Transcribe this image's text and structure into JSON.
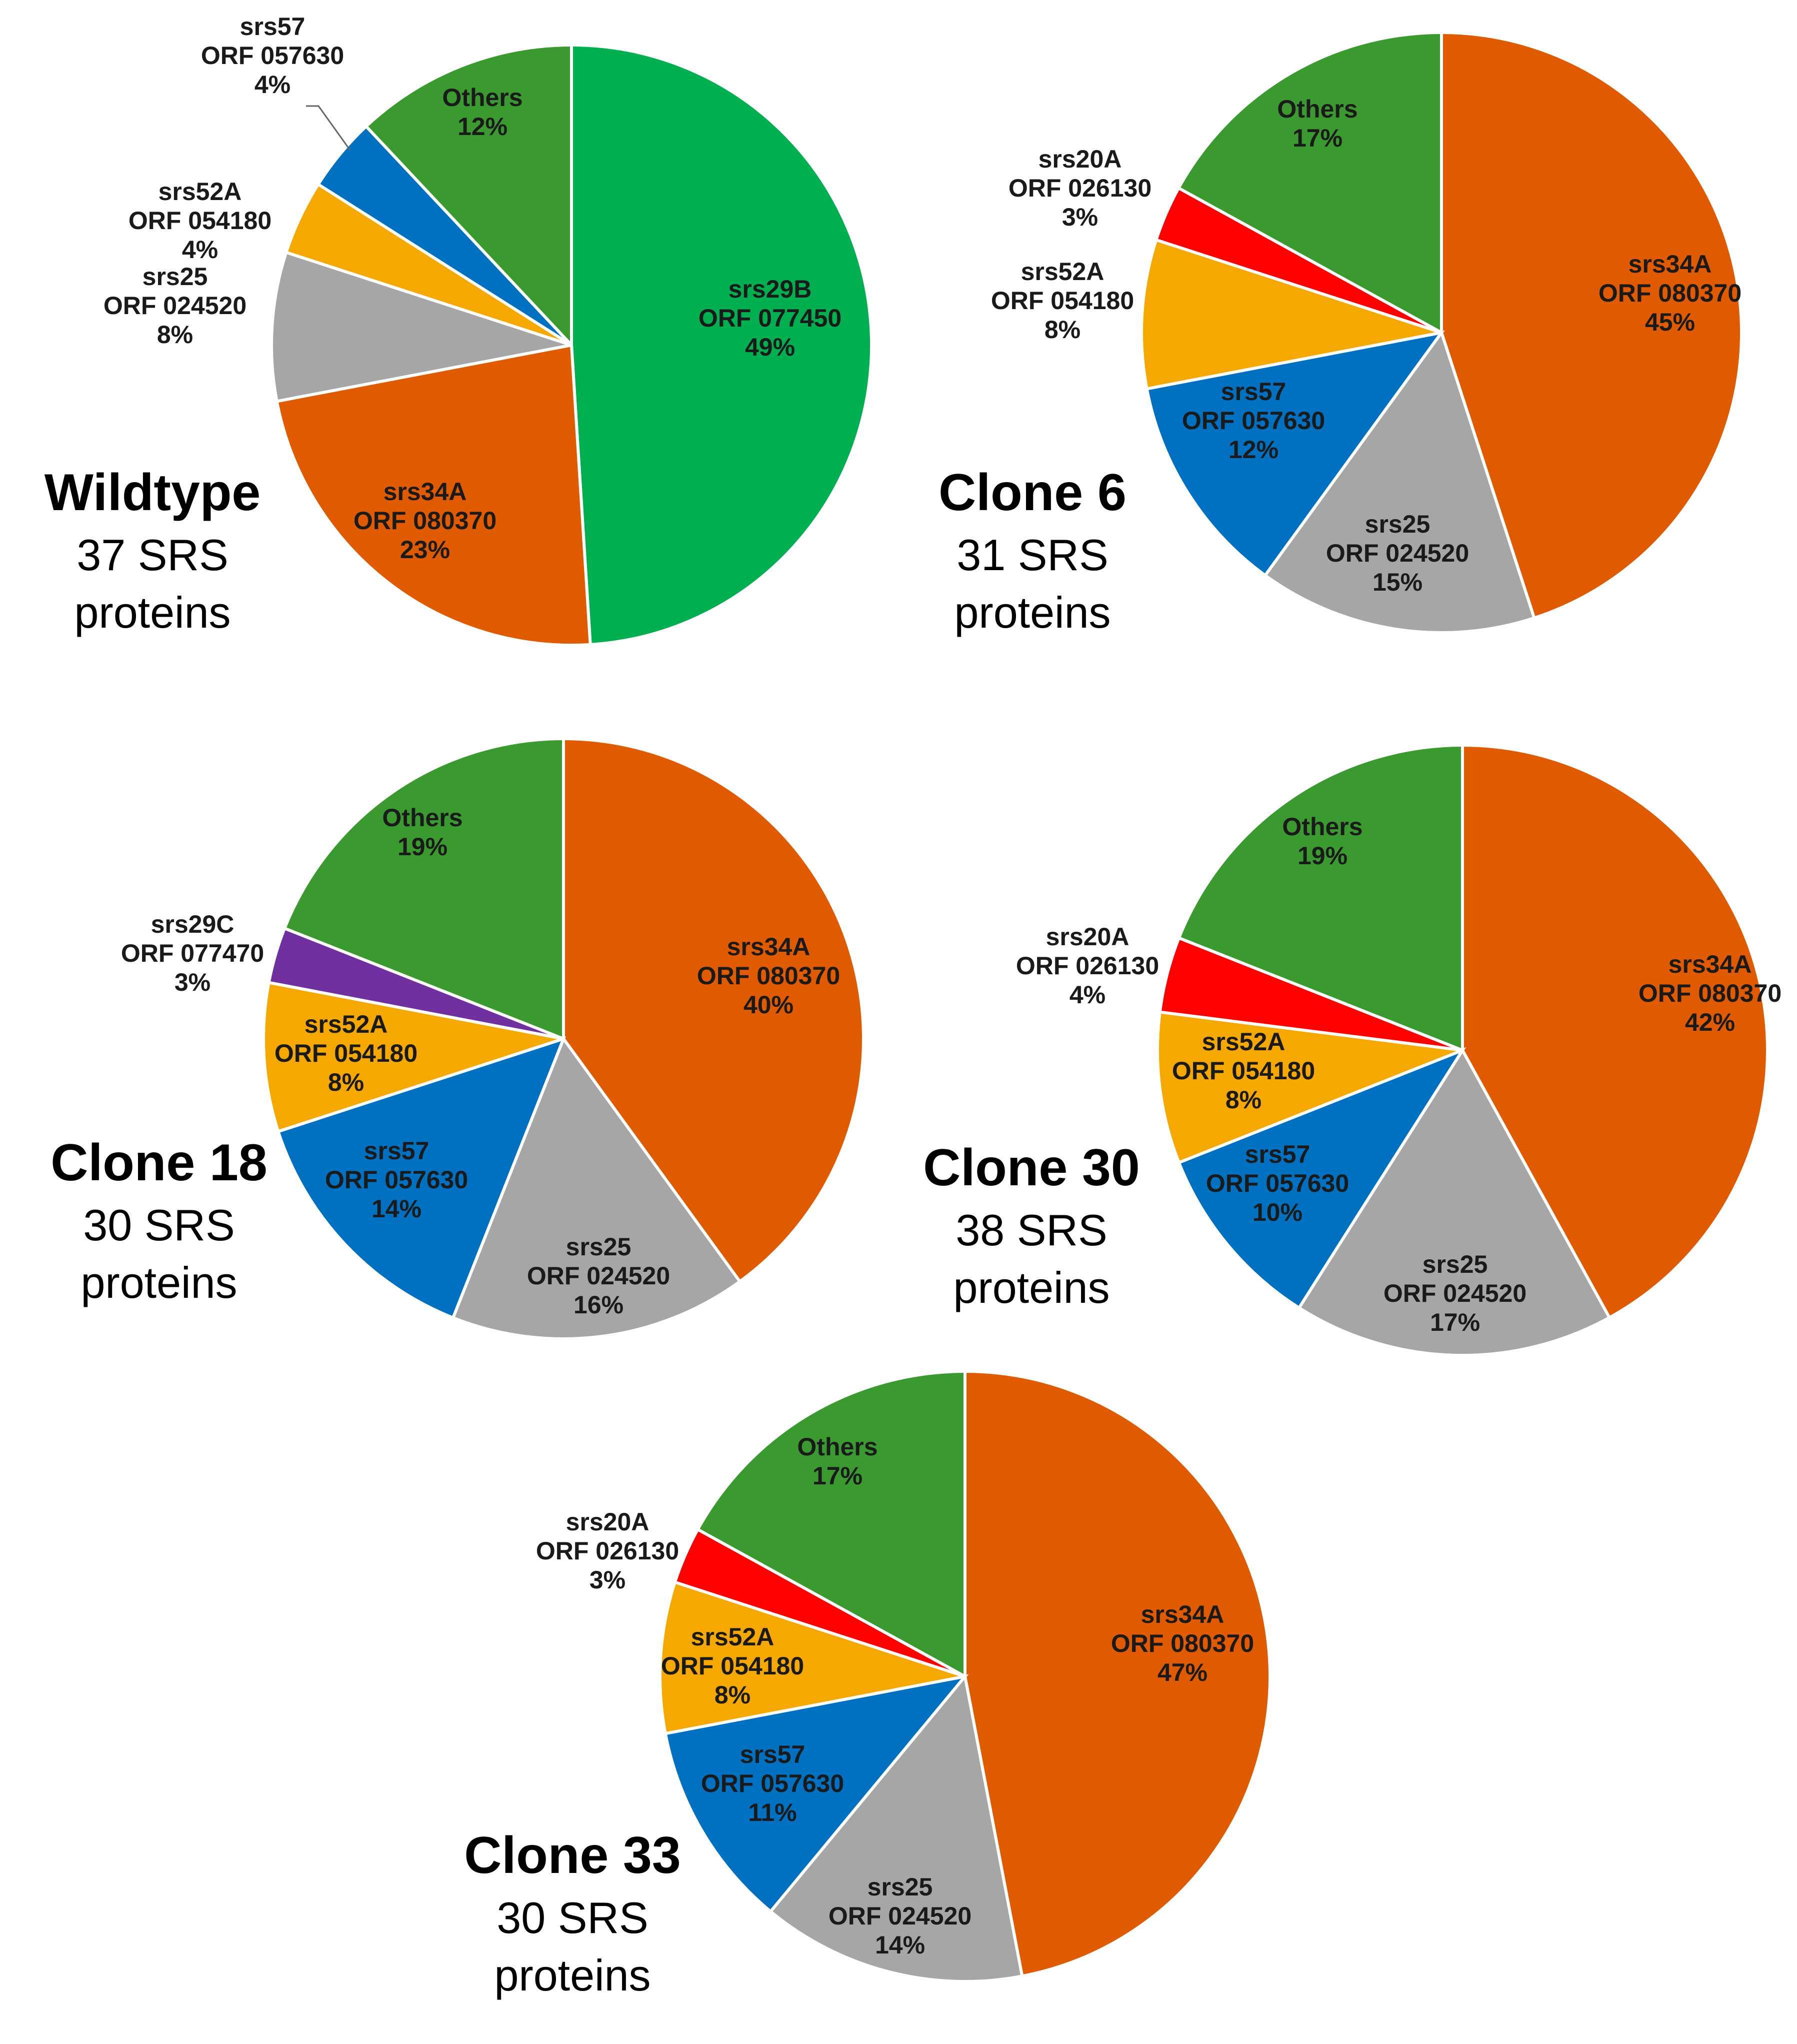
{
  "colors": {
    "srs29B": "#00B050",
    "srs34A": "#E05A00",
    "srs25": "#A6A6A6",
    "srs52A": "#F5A800",
    "srs57": "#0070C0",
    "srs20A": "#FF0000",
    "srs29C": "#7030A0",
    "Others": "#3A9A30"
  },
  "chart_data": [
    {
      "type": "pie",
      "id": "wildtype",
      "title": "Wildtype",
      "subtitle_line1": "37 SRS",
      "subtitle_line2": "proteins",
      "slices": [
        {
          "key": "srs29B",
          "label": "srs29B",
          "orf": "ORF 077450",
          "pct_label": "49%",
          "value": 49
        },
        {
          "key": "srs34A",
          "label": "srs34A",
          "orf": "ORF 080370",
          "pct_label": "23%",
          "value": 23
        },
        {
          "key": "srs25",
          "label": "srs25",
          "orf": "ORF 024520",
          "pct_label": "8%",
          "value": 8
        },
        {
          "key": "srs52A",
          "label": "srs52A",
          "orf": "ORF 054180",
          "pct_label": "4%",
          "value": 4
        },
        {
          "key": "srs57",
          "label": "srs57",
          "orf": "ORF 057630",
          "pct_label": "4%",
          "value": 4
        },
        {
          "key": "Others",
          "label": "Others",
          "orf": "",
          "pct_label": "12%",
          "value": 12
        }
      ]
    },
    {
      "type": "pie",
      "id": "clone6",
      "title": "Clone 6",
      "subtitle_line1": "31 SRS",
      "subtitle_line2": "proteins",
      "slices": [
        {
          "key": "srs34A",
          "label": "srs34A",
          "orf": "ORF 080370",
          "pct_label": "45%",
          "value": 45
        },
        {
          "key": "srs25",
          "label": "srs25",
          "orf": "ORF 024520",
          "pct_label": "15%",
          "value": 15
        },
        {
          "key": "srs57",
          "label": "srs57",
          "orf": "ORF 057630",
          "pct_label": "12%",
          "value": 12
        },
        {
          "key": "srs52A",
          "label": "srs52A",
          "orf": "ORF 054180",
          "pct_label": "8%",
          "value": 8
        },
        {
          "key": "srs20A",
          "label": "srs20A",
          "orf": "ORF 026130",
          "pct_label": "3%",
          "value": 3
        },
        {
          "key": "Others",
          "label": "Others",
          "orf": "",
          "pct_label": "17%",
          "value": 17
        }
      ]
    },
    {
      "type": "pie",
      "id": "clone18",
      "title": "Clone 18",
      "subtitle_line1": "30 SRS",
      "subtitle_line2": "proteins",
      "slices": [
        {
          "key": "srs34A",
          "label": "srs34A",
          "orf": "ORF 080370",
          "pct_label": "40%",
          "value": 40
        },
        {
          "key": "srs25",
          "label": "srs25",
          "orf": "ORF 024520",
          "pct_label": "16%",
          "value": 16
        },
        {
          "key": "srs57",
          "label": "srs57",
          "orf": "ORF 057630",
          "pct_label": "14%",
          "value": 14
        },
        {
          "key": "srs52A",
          "label": "srs52A",
          "orf": "ORF 054180",
          "pct_label": "8%",
          "value": 8
        },
        {
          "key": "srs29C",
          "label": "srs29C",
          "orf": "ORF 077470",
          "pct_label": "3%",
          "value": 3
        },
        {
          "key": "Others",
          "label": "Others",
          "orf": "",
          "pct_label": "19%",
          "value": 19
        }
      ]
    },
    {
      "type": "pie",
      "id": "clone30",
      "title": "Clone 30",
      "subtitle_line1": "38 SRS",
      "subtitle_line2": "proteins",
      "slices": [
        {
          "key": "srs34A",
          "label": "srs34A",
          "orf": "ORF 080370",
          "pct_label": "42%",
          "value": 42
        },
        {
          "key": "srs25",
          "label": "srs25",
          "orf": "ORF 024520",
          "pct_label": "17%",
          "value": 17
        },
        {
          "key": "srs57",
          "label": "srs57",
          "orf": "ORF 057630",
          "pct_label": "10%",
          "value": 10
        },
        {
          "key": "srs52A",
          "label": "srs52A",
          "orf": "ORF 054180",
          "pct_label": "8%",
          "value": 8
        },
        {
          "key": "srs20A",
          "label": "srs20A",
          "orf": "ORF 026130",
          "pct_label": "4%",
          "value": 4
        },
        {
          "key": "Others",
          "label": "Others",
          "orf": "",
          "pct_label": "19%",
          "value": 19
        }
      ]
    },
    {
      "type": "pie",
      "id": "clone33",
      "title": "Clone 33",
      "subtitle_line1": "30 SRS",
      "subtitle_line2": "proteins",
      "slices": [
        {
          "key": "srs34A",
          "label": "srs34A",
          "orf": "ORF 080370",
          "pct_label": "47%",
          "value": 47
        },
        {
          "key": "srs25",
          "label": "srs25",
          "orf": "ORF 024520",
          "pct_label": "14%",
          "value": 14
        },
        {
          "key": "srs57",
          "label": "srs57",
          "orf": "ORF 057630",
          "pct_label": "11%",
          "value": 11
        },
        {
          "key": "srs52A",
          "label": "srs52A",
          "orf": "ORF 054180",
          "pct_label": "8%",
          "value": 8
        },
        {
          "key": "srs20A",
          "label": "srs20A",
          "orf": "ORF 026130",
          "pct_label": "3%",
          "value": 3
        },
        {
          "key": "Others",
          "label": "Others",
          "orf": "",
          "pct_label": "17%",
          "value": 17
        }
      ]
    }
  ]
}
